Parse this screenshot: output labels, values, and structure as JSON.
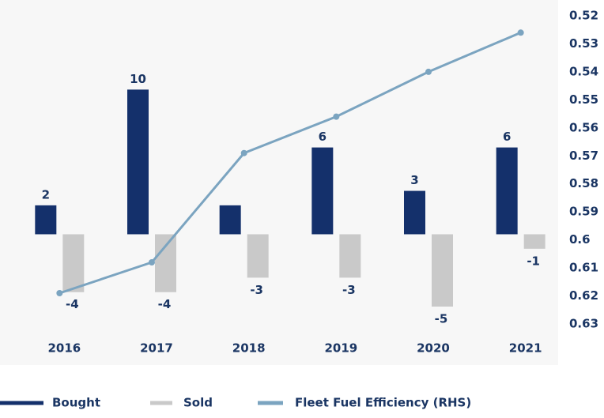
{
  "chart_data": {
    "type": "bar",
    "categories": [
      "2016",
      "2017",
      "2018",
      "2019",
      "2020",
      "2021"
    ],
    "series": [
      {
        "name": "Bought",
        "color": "#14306b",
        "values": [
          2,
          10,
          2,
          6,
          3,
          6
        ],
        "value_labels": [
          "2",
          "10",
          null,
          "6",
          "3",
          "6"
        ]
      },
      {
        "name": "Sold",
        "color": "#c9c9c9",
        "values": [
          -4,
          -4,
          -3,
          -3,
          -5,
          -1
        ]
      },
      {
        "name": "Fleet Fuel Efficiency (RHS)",
        "color": "#7ba4c0",
        "type": "line",
        "axis": "y2",
        "values": [
          0.619,
          0.608,
          0.569,
          0.556,
          0.54,
          0.526
        ]
      }
    ],
    "ylim": [
      -6.2,
      15.1
    ],
    "y2lim": [
      0.52,
      0.63
    ],
    "y2_inverted": true,
    "y2ticks": [
      0.52,
      0.53,
      0.54,
      0.55,
      0.56,
      0.57,
      0.58,
      0.59,
      0.6,
      0.61,
      0.62,
      0.63
    ]
  }
}
